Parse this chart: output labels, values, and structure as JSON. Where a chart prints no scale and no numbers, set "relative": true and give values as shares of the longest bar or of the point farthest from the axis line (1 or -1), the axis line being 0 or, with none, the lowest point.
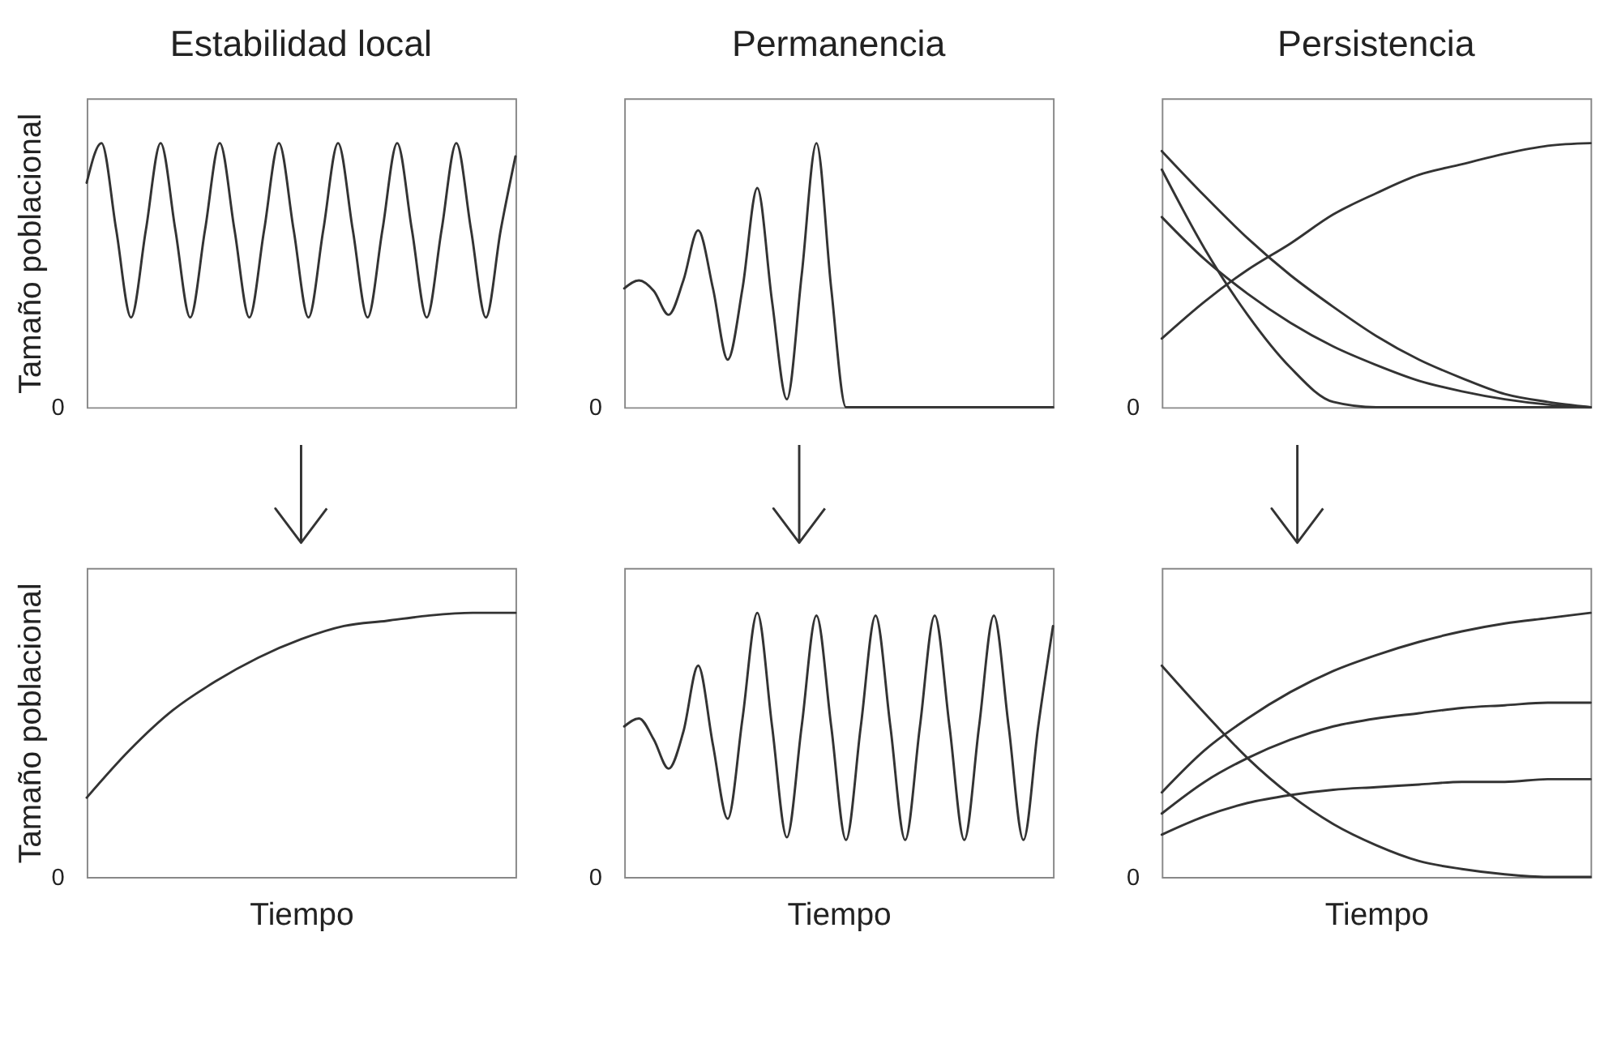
{
  "chart_data": [
    {
      "type": "line",
      "title": "Estabilidad local",
      "ylabel": "Tamaño poblacional",
      "relative": true,
      "tick_labels": false,
      "annotations": [
        "0"
      ],
      "categories": [
        null,
        null,
        null,
        null,
        null,
        null,
        null,
        null,
        null,
        null,
        null,
        null,
        null,
        null,
        null,
        null,
        null,
        null,
        null,
        null,
        null,
        null,
        null,
        null,
        null,
        null,
        null,
        null,
        null,
        null
      ],
      "series": [
        {
          "color": "#333333",
          "values": [
            0.85,
            1,
            0.67,
            0.34,
            0.67,
            1,
            0.67,
            0.34,
            0.67,
            1,
            0.67,
            0.34,
            0.67,
            1,
            0.67,
            0.34,
            0.67,
            1,
            0.67,
            0.34,
            0.67,
            1,
            0.67,
            0.34,
            0.67,
            1,
            0.67,
            0.34,
            0.67,
            0.95
          ]
        }
      ]
    },
    {
      "type": "line",
      "title": "Permanencia",
      "relative": true,
      "tick_labels": false,
      "annotations": [
        "0"
      ],
      "categories": [
        null,
        null,
        null,
        null,
        null,
        null,
        null,
        null,
        null,
        null,
        null,
        null,
        null,
        null,
        null,
        null,
        null,
        null,
        null,
        null,
        null,
        null,
        null,
        null,
        null,
        null,
        null,
        null,
        null,
        null
      ],
      "series": [
        {
          "color": "#333333",
          "values": [
            0.45,
            0.48,
            0.44,
            0.35,
            0.48,
            0.67,
            0.45,
            0.18,
            0.45,
            0.83,
            0.4,
            0.03,
            0.5,
            1,
            0.45,
            0,
            0,
            0,
            0,
            0,
            0,
            0,
            0,
            0,
            0,
            0,
            0,
            0,
            0,
            0
          ]
        }
      ]
    },
    {
      "type": "line",
      "title": "Persistencia",
      "relative": true,
      "tick_labels": false,
      "annotations": [
        "0"
      ],
      "categories": [
        null,
        null,
        null,
        null,
        null,
        null,
        null,
        null,
        null,
        null,
        null
      ],
      "series": [
        {
          "color": "#333333",
          "values": [
            0.26,
            0.4,
            0.52,
            0.62,
            0.73,
            0.81,
            0.88,
            0.92,
            0.96,
            0.99,
            1
          ]
        },
        {
          "color": "#333333",
          "values": [
            0.97,
            0.8,
            0.64,
            0.5,
            0.38,
            0.27,
            0.18,
            0.11,
            0.05,
            0.02,
            0
          ]
        },
        {
          "color": "#333333",
          "values": [
            0.9,
            0.6,
            0.35,
            0.15,
            0.02,
            0,
            0,
            0,
            0,
            0,
            0
          ]
        },
        {
          "color": "#333333",
          "values": [
            0.72,
            0.56,
            0.43,
            0.32,
            0.23,
            0.16,
            0.1,
            0.06,
            0.03,
            0.01,
            0
          ]
        }
      ]
    },
    {
      "type": "line",
      "xlabel": "Tiempo",
      "ylabel": "Tamaño poblacional",
      "relative": true,
      "tick_labels": false,
      "annotations": [
        "0"
      ],
      "categories": [
        null,
        null,
        null,
        null,
        null,
        null,
        null,
        null,
        null,
        null,
        null
      ],
      "series": [
        {
          "color": "#333333",
          "values": [
            0.3,
            0.48,
            0.63,
            0.74,
            0.83,
            0.9,
            0.95,
            0.97,
            0.99,
            1,
            1
          ]
        }
      ]
    },
    {
      "type": "line",
      "xlabel": "Tiempo",
      "relative": true,
      "tick_labels": false,
      "annotations": [
        "0"
      ],
      "categories": [
        null,
        null,
        null,
        null,
        null,
        null,
        null,
        null,
        null,
        null,
        null,
        null,
        null,
        null,
        null,
        null,
        null,
        null,
        null,
        null,
        null,
        null,
        null,
        null,
        null,
        null,
        null,
        null,
        null,
        null
      ],
      "series": [
        {
          "color": "#333333",
          "values": [
            0.57,
            0.6,
            0.52,
            0.41,
            0.55,
            0.8,
            0.5,
            0.22,
            0.6,
            1,
            0.57,
            0.15,
            0.57,
            0.99,
            0.57,
            0.14,
            0.57,
            0.99,
            0.57,
            0.14,
            0.57,
            0.99,
            0.57,
            0.14,
            0.57,
            0.99,
            0.57,
            0.14,
            0.57,
            0.95
          ]
        }
      ]
    },
    {
      "type": "line",
      "xlabel": "Tiempo",
      "relative": true,
      "tick_labels": false,
      "annotations": [
        "0"
      ],
      "categories": [
        null,
        null,
        null,
        null,
        null,
        null,
        null,
        null,
        null,
        null,
        null
      ],
      "series": [
        {
          "color": "#333333",
          "values": [
            0.32,
            0.48,
            0.6,
            0.7,
            0.78,
            0.84,
            0.89,
            0.93,
            0.96,
            0.98,
            1
          ]
        },
        {
          "color": "#333333",
          "values": [
            0.24,
            0.36,
            0.45,
            0.52,
            0.57,
            0.6,
            0.62,
            0.64,
            0.65,
            0.66,
            0.66
          ]
        },
        {
          "color": "#333333",
          "values": [
            0.16,
            0.23,
            0.28,
            0.31,
            0.33,
            0.34,
            0.35,
            0.36,
            0.36,
            0.37,
            0.37
          ]
        },
        {
          "color": "#333333",
          "values": [
            0.8,
            0.62,
            0.45,
            0.31,
            0.2,
            0.12,
            0.06,
            0.03,
            0.01,
            0,
            0
          ]
        }
      ]
    }
  ]
}
